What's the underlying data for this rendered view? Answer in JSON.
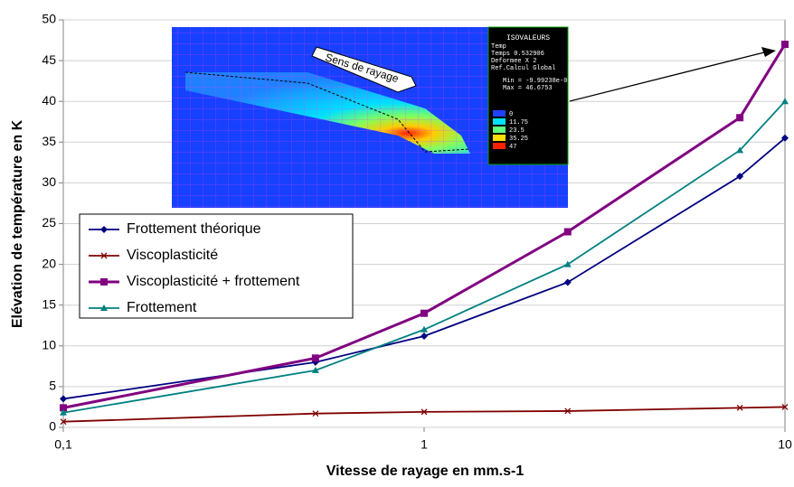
{
  "chart_data": {
    "type": "line",
    "x_label": "Vitesse de rayage en mm.s-1",
    "y_label": "Elévation de température en K",
    "x": [
      0.1,
      0.5,
      1,
      2.5,
      7.5,
      10
    ],
    "log_x": true,
    "xlim": [
      0.1,
      10
    ],
    "xticks": [
      {
        "value": 0.1,
        "label": "0,1"
      },
      1,
      10
    ],
    "ylim": [
      0,
      50
    ],
    "yticks": [
      0,
      5,
      10,
      15,
      20,
      25,
      30,
      35,
      40,
      45,
      50
    ],
    "grid": true,
    "series": [
      {
        "name": "Frottement théorique",
        "color": "#000080",
        "marker": "diamond",
        "values": [
          3.5,
          8,
          11.2,
          17.8,
          30.8,
          35.5
        ]
      },
      {
        "name": "Viscoplasticité",
        "color": "#800000",
        "marker": "x",
        "values": [
          0.7,
          1.7,
          1.9,
          2.0,
          2.4,
          2.5
        ]
      },
      {
        "name": "Viscoplasticité + frottement",
        "color": "#800080",
        "marker": "square",
        "values": [
          2.4,
          8.5,
          14,
          24,
          38,
          47
        ]
      },
      {
        "name": "Frottement",
        "color": "#008080",
        "marker": "triangle",
        "values": [
          1.8,
          7,
          12,
          20,
          34,
          40
        ]
      }
    ],
    "inset": {
      "arrow_text": "Sens de rayage",
      "legend_title": "ISOVALEURS",
      "info": [
        "Temp",
        "Temps 0.532906",
        "Deformee X 2",
        "Ref.Calcul Global",
        "Min = -9.99238e-0",
        "Max = 46.6753"
      ],
      "scale": [
        0,
        11.75,
        23.5,
        35.25,
        47
      ]
    }
  }
}
